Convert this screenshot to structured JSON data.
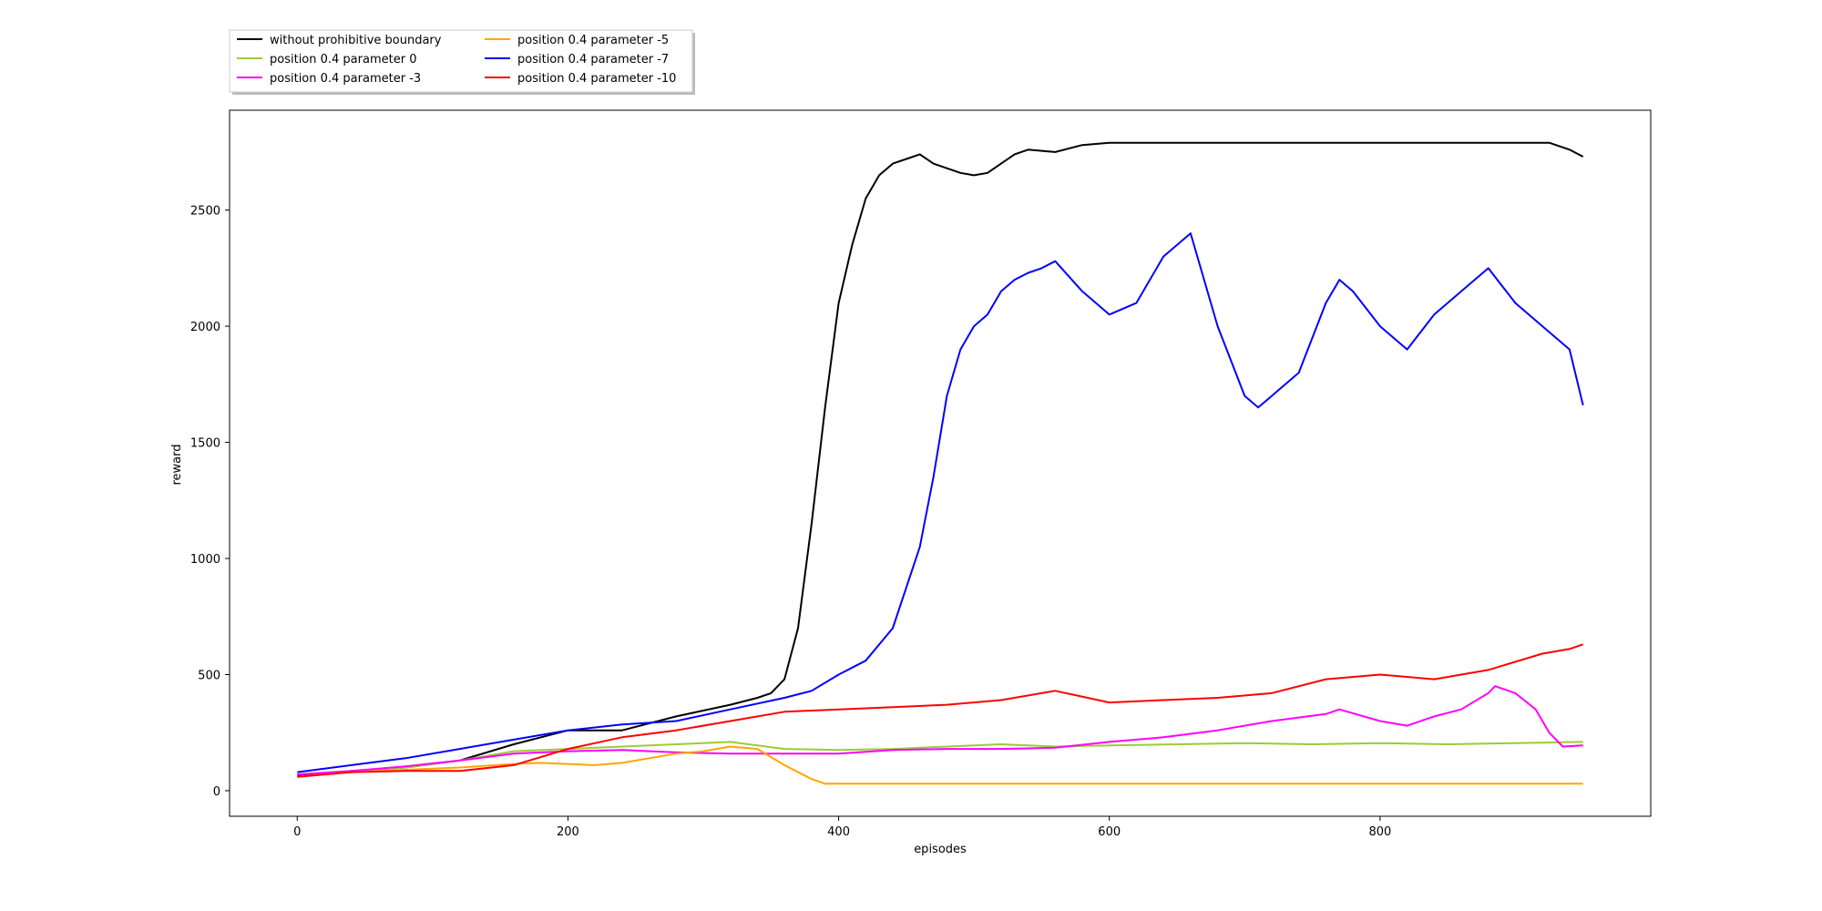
{
  "chart_data": {
    "type": "line",
    "title": "",
    "xlabel": "episodes",
    "ylabel": "reward",
    "xlim": [
      -50,
      1000
    ],
    "ylim": [
      -110,
      2930
    ],
    "xticks": [
      0,
      200,
      400,
      600,
      800
    ],
    "yticks": [
      0,
      500,
      1000,
      1500,
      2000,
      2500
    ],
    "grid": false,
    "legend_placement": "upper-left, above plot",
    "legend_columns": 2,
    "series": [
      {
        "name": "without prohibitive boundary",
        "color": "#000000",
        "x": [
          0,
          40,
          80,
          120,
          160,
          200,
          240,
          280,
          320,
          340,
          350,
          360,
          370,
          380,
          390,
          400,
          410,
          420,
          430,
          440,
          450,
          460,
          470,
          480,
          490,
          500,
          510,
          520,
          530,
          540,
          560,
          580,
          600,
          700,
          800,
          900,
          925,
          940,
          950
        ],
        "y": [
          65,
          85,
          100,
          130,
          200,
          260,
          260,
          320,
          370,
          400,
          420,
          480,
          700,
          1150,
          1650,
          2100,
          2350,
          2550,
          2650,
          2700,
          2720,
          2740,
          2700,
          2680,
          2660,
          2650,
          2660,
          2700,
          2740,
          2760,
          2750,
          2780,
          2790,
          2790,
          2790,
          2790,
          2790,
          2760,
          2730
        ]
      },
      {
        "name": "position 0.4 parameter 0",
        "color": "#9ACD32",
        "x": [
          0,
          40,
          80,
          120,
          160,
          200,
          240,
          280,
          320,
          360,
          400,
          440,
          480,
          520,
          560,
          600,
          650,
          700,
          750,
          800,
          850,
          900,
          950
        ],
        "y": [
          70,
          85,
          100,
          130,
          170,
          180,
          190,
          200,
          210,
          180,
          175,
          180,
          190,
          200,
          190,
          195,
          200,
          205,
          200,
          205,
          200,
          205,
          210
        ]
      },
      {
        "name": "position 0.4 parameter -3",
        "color": "#FF00FF",
        "x": [
          0,
          40,
          80,
          120,
          160,
          200,
          240,
          280,
          320,
          360,
          400,
          440,
          480,
          520,
          560,
          600,
          640,
          680,
          720,
          760,
          770,
          800,
          820,
          840,
          860,
          880,
          885,
          900,
          915,
          925,
          935,
          950
        ],
        "y": [
          70,
          85,
          105,
          130,
          160,
          170,
          175,
          165,
          160,
          160,
          160,
          175,
          180,
          180,
          185,
          210,
          230,
          260,
          300,
          330,
          350,
          300,
          280,
          320,
          350,
          420,
          450,
          420,
          350,
          250,
          190,
          195
        ]
      },
      {
        "name": "position 0.4 parameter -5",
        "color": "#FFA500",
        "x": [
          0,
          40,
          80,
          120,
          160,
          180,
          200,
          220,
          240,
          260,
          280,
          300,
          320,
          340,
          360,
          380,
          390,
          400,
          500,
          600,
          700,
          800,
          900,
          950
        ],
        "y": [
          60,
          80,
          90,
          100,
          115,
          120,
          115,
          110,
          120,
          140,
          160,
          170,
          190,
          180,
          110,
          50,
          30,
          30,
          30,
          30,
          30,
          30,
          30,
          30
        ]
      },
      {
        "name": "position 0.4 parameter -7",
        "color": "#0000FF",
        "x": [
          0,
          40,
          80,
          120,
          160,
          200,
          240,
          280,
          320,
          360,
          380,
          400,
          420,
          440,
          460,
          470,
          480,
          490,
          500,
          510,
          520,
          530,
          540,
          550,
          560,
          580,
          600,
          620,
          640,
          660,
          680,
          700,
          710,
          720,
          740,
          760,
          770,
          780,
          800,
          820,
          840,
          860,
          880,
          900,
          920,
          940,
          950
        ],
        "y": [
          80,
          110,
          140,
          180,
          220,
          260,
          285,
          300,
          350,
          400,
          430,
          500,
          560,
          700,
          1050,
          1350,
          1700,
          1900,
          2000,
          2050,
          2150,
          2200,
          2230,
          2250,
          2280,
          2150,
          2050,
          2100,
          2300,
          2400,
          2000,
          1700,
          1650,
          1700,
          1800,
          2100,
          2200,
          2150,
          2000,
          1900,
          2050,
          2150,
          2250,
          2100,
          2000,
          1900,
          1660
        ]
      },
      {
        "name": "position 0.4 parameter -10",
        "color": "#FF0000",
        "x": [
          0,
          40,
          80,
          120,
          160,
          200,
          240,
          280,
          320,
          360,
          400,
          440,
          480,
          520,
          560,
          600,
          640,
          680,
          720,
          760,
          800,
          840,
          880,
          920,
          940,
          950
        ],
        "y": [
          60,
          80,
          85,
          85,
          110,
          180,
          230,
          260,
          300,
          340,
          350,
          360,
          370,
          390,
          430,
          380,
          390,
          400,
          420,
          480,
          500,
          480,
          520,
          590,
          610,
          630
        ]
      }
    ]
  }
}
